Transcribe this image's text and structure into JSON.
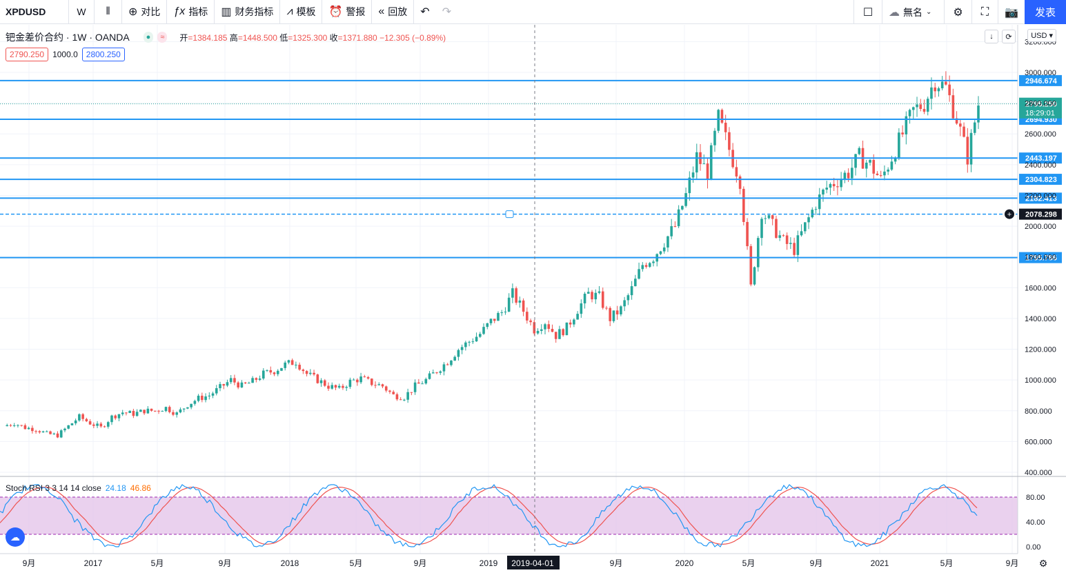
{
  "toolbar": {
    "symbol": "XPDUSD",
    "interval": "W",
    "compare": "对比",
    "indicators": "指标",
    "financials": "财务指标",
    "templates": "模板",
    "alerts": "警报",
    "replay": "回放",
    "layout_name": "無名",
    "publish": "发表"
  },
  "legend": {
    "title": "钯金差价合约 · 1W · OANDA",
    "open_label": "开",
    "open": "=1384.185",
    "high_label": "高",
    "high": "=1448.500",
    "low_label": "低",
    "low": "=1325.300",
    "close_label": "收",
    "close": "=1371.880",
    "change": "−12.305 (−0.89%)",
    "bid": "2790.250",
    "spread": "1000.0",
    "ask": "2800.250"
  },
  "currency": "USD",
  "stoch": {
    "label": "Stoch RSI 3 3 14 14 close",
    "k": "24.18",
    "d": "46.86"
  },
  "price_axis": [
    "3200.000",
    "3000.000",
    "2800.000",
    "2600.000",
    "2400.000",
    "2200.000",
    "2000.000",
    "1800.000",
    "1600.000",
    "1400.000",
    "1200.000",
    "1000.000",
    "800.000",
    "600.000",
    "400.000"
  ],
  "stoch_axis": [
    "80.00",
    "40.00",
    "0.00"
  ],
  "time_axis": [
    "9月",
    "2017",
    "5月",
    "9月",
    "2018",
    "5月",
    "9月",
    "2019",
    "2019-04-01",
    "9月",
    "2020",
    "5月",
    "9月",
    "2021",
    "5月",
    "9月"
  ],
  "hlines": [
    "2946.674",
    "2694.930",
    "2443.197",
    "2304.823",
    "2182.413",
    "2078.298",
    "1795.786"
  ],
  "last_price": {
    "value": "2795.250",
    "countdown": "18:29:01"
  },
  "colors": {
    "up": "#26a69a",
    "down": "#ef5350",
    "hline": "#2196f3",
    "stoch_band": "#e1bee7"
  },
  "chart_data": {
    "type": "candlestick",
    "series": [
      {
        "name": "XPDUSD",
        "x_range": [
          "2016-06",
          "2021-08"
        ],
        "close": [
          700,
          720,
          690,
          680,
          650,
          640,
          700,
          760,
          720,
          690,
          760,
          790,
          780,
          800,
          800,
          820,
          780,
          840,
          880,
          900,
          950,
          1000,
          960,
          990,
          1040,
          1060,
          1100,
          1120,
          1040,
          1000,
          960,
          940,
          990,
          1010,
          980,
          960,
          900,
          890,
          960,
          1000,
          1060,
          1120,
          1200,
          1250,
          1300,
          1380,
          1440,
          1560,
          1450,
          1330,
          1380,
          1290,
          1340,
          1460,
          1560,
          1540,
          1400,
          1460,
          1590,
          1750,
          1800,
          1900,
          2000,
          2200,
          2450,
          2350,
          2700,
          2500,
          2300,
          1600,
          2100,
          2000,
          1900,
          1850,
          2000,
          2150,
          2250,
          2300,
          2350,
          2450,
          2400,
          2300,
          2450,
          2600,
          2750,
          2800,
          2950,
          2900,
          2700,
          2450,
          2795
        ]
      }
    ],
    "ylim": [
      400,
      3200
    ],
    "hlines": [
      2946.674,
      2694.93,
      2443.197,
      2304.823,
      2182.413,
      2078.298,
      1795.786
    ],
    "stoch_rsi": {
      "k": 24.18,
      "d": 46.86,
      "bands": [
        20,
        80
      ]
    }
  }
}
